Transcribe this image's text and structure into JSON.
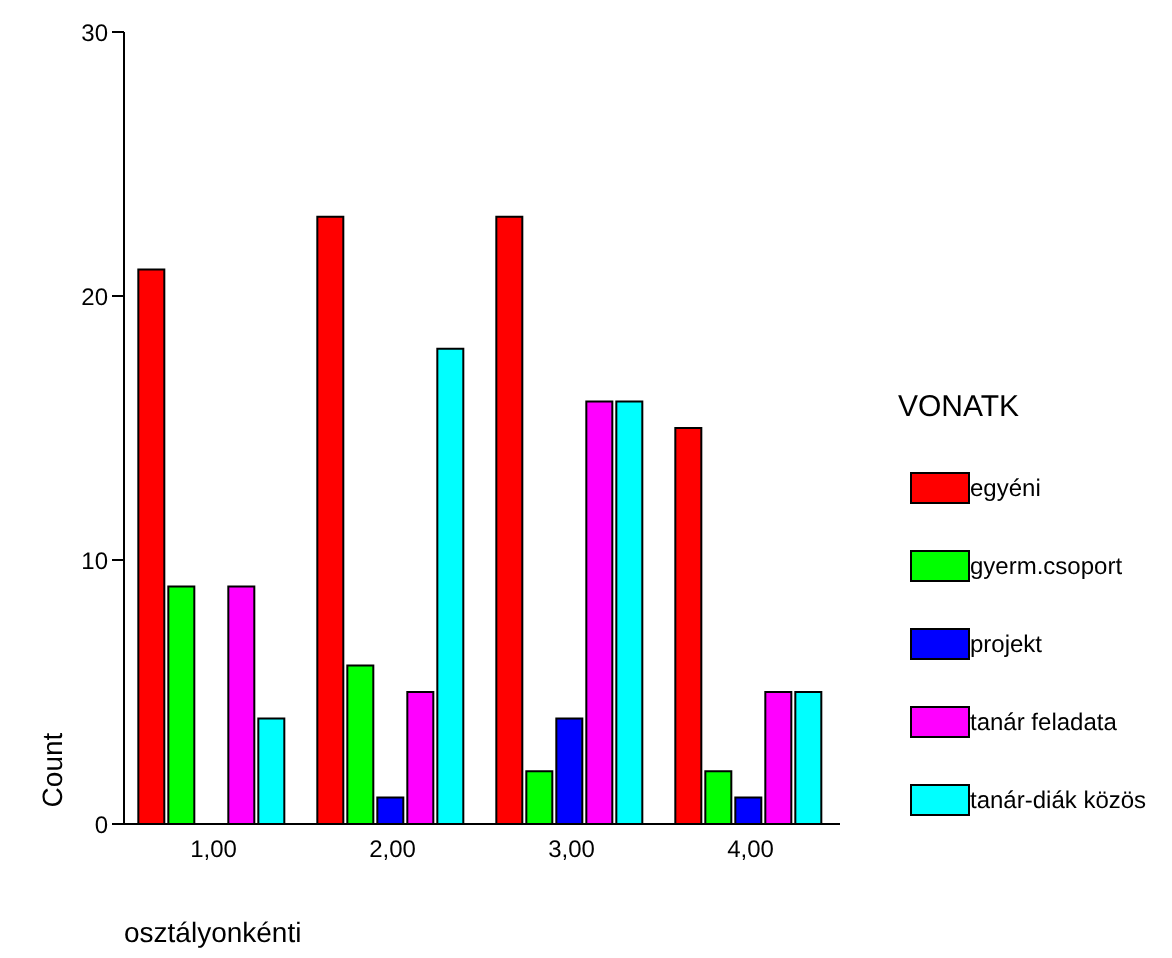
{
  "chart_data": {
    "type": "bar",
    "xlabel": "osztályonkénti",
    "ylabel": "Count",
    "legend_title": "VONATK",
    "legend": "right",
    "categories": [
      "1,00",
      "2,00",
      "3,00",
      "4,00"
    ],
    "series": [
      {
        "name": "egyéni",
        "color": "#ff0000",
        "values": [
          21,
          23,
          23,
          15
        ]
      },
      {
        "name": "gyerm.csoport",
        "color": "#00ff00",
        "values": [
          9,
          6,
          2,
          2
        ]
      },
      {
        "name": "projekt",
        "color": "#0000ff",
        "values": [
          0,
          1,
          4,
          1
        ]
      },
      {
        "name": "tanár feladata",
        "color": "#ff00ff",
        "values": [
          9,
          5,
          16,
          5
        ]
      },
      {
        "name": "tanár-diák közös",
        "color": "#00ffff",
        "values": [
          4,
          18,
          16,
          5
        ]
      }
    ],
    "ylim": [
      0,
      30
    ],
    "yticks": [
      0,
      10,
      20,
      30
    ],
    "grid": false
  }
}
